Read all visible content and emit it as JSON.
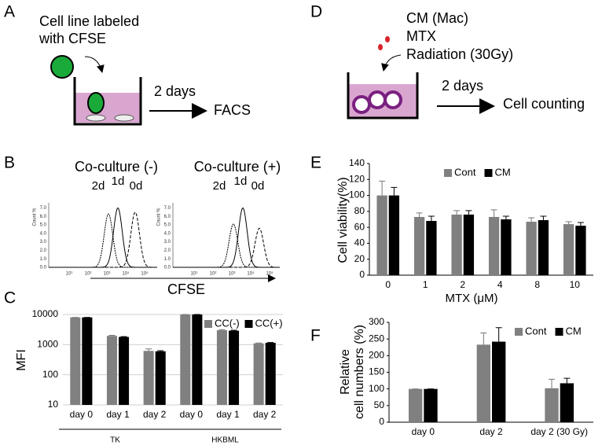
{
  "panel_labels": [
    "A",
    "B",
    "C",
    "D",
    "E",
    "F"
  ],
  "panel_a": {
    "label_lines": [
      "Cell line labeled",
      "with CFSE"
    ],
    "duration": "2 days",
    "readout": "FACS"
  },
  "panel_d": {
    "treatments": [
      "CM (Mac)",
      "MTX",
      "Radiation (30Gy)"
    ],
    "duration": "2 days",
    "readout": "Cell counting"
  },
  "panel_b": {
    "titles": [
      "Co-culture (-)",
      "Co-culture (+)"
    ],
    "peak_labels": [
      "2d",
      "1d",
      "0d"
    ],
    "y_axis_label": "Count %",
    "y_tick_labels": [
      "0.0",
      "1.0",
      "2.0",
      "3.0",
      "4.0",
      "5.0",
      "6.0",
      "7.0"
    ],
    "x_tick_labels": [
      "10¹",
      "10²",
      "10³",
      "10⁴",
      "10⁵"
    ],
    "x_label": "CFSE"
  },
  "chart_data": [
    {
      "type": "bar",
      "ylabel": "MFI",
      "log_scale": true,
      "grid": true,
      "legend": "top-right",
      "categories": [
        "day 0",
        "day 1",
        "day 2",
        "day 0",
        "day 1",
        "day 2"
      ],
      "groups": [
        "TK",
        "HKBML"
      ],
      "ylim": [
        10,
        10000
      ],
      "yticks": [
        10,
        100,
        1000,
        10000
      ],
      "series": [
        {
          "name": "CC(-)",
          "color": "#808080",
          "values": [
            8000,
            1950,
            620,
            10000,
            3000,
            1100
          ],
          "errors": [
            0,
            80,
            100,
            0,
            150,
            30
          ]
        },
        {
          "name": "CC(+)",
          "color": "#000000",
          "values": [
            8000,
            1800,
            600,
            10000,
            2900,
            1150
          ],
          "errors": [
            0,
            50,
            30,
            0,
            100,
            30
          ]
        }
      ]
    },
    {
      "type": "bar",
      "ylabel": "Cell viability(%)",
      "xlabel": "MTX (μM)",
      "log_scale": false,
      "grid": false,
      "legend": "top-center",
      "categories": [
        "0",
        "1",
        "2",
        "4",
        "8",
        "10"
      ],
      "ylim": [
        0,
        140
      ],
      "yticks": [
        0,
        20,
        40,
        60,
        80,
        100,
        120,
        140
      ],
      "series": [
        {
          "name": "Cont",
          "color": "#808080",
          "values": [
            100,
            73,
            76,
            73,
            67,
            64
          ],
          "errors": [
            18,
            5,
            5,
            9,
            5,
            3
          ]
        },
        {
          "name": "CM",
          "color": "#000000",
          "values": [
            100,
            68,
            76,
            70,
            69,
            62
          ],
          "errors": [
            10,
            6,
            5,
            4,
            5,
            4
          ]
        }
      ]
    },
    {
      "type": "bar",
      "ylabel": [
        "Relative",
        "cell numbers (%)"
      ],
      "log_scale": false,
      "grid": false,
      "legend": "top-right",
      "categories": [
        "day 0",
        "day 2",
        "day 2 (30 Gy)"
      ],
      "ylim": [
        0,
        300
      ],
      "yticks": [
        0,
        50,
        100,
        150,
        200,
        250,
        300
      ],
      "series": [
        {
          "name": "Cont",
          "color": "#808080",
          "values": [
            100,
            233,
            102
          ],
          "errors": [
            0,
            35,
            27
          ]
        },
        {
          "name": "CM",
          "color": "#000000",
          "values": [
            100,
            242,
            117
          ],
          "errors": [
            0,
            42,
            15
          ]
        }
      ]
    }
  ]
}
